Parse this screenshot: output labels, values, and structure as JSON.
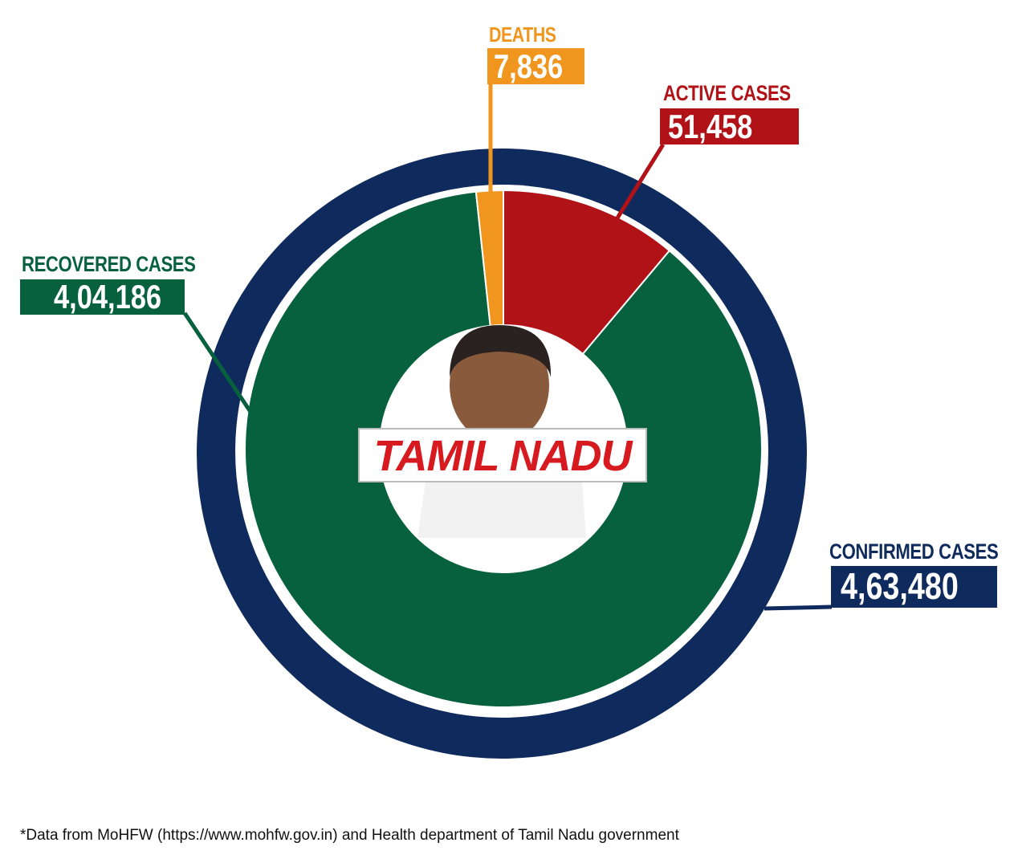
{
  "chart_data": {
    "type": "pie",
    "title": "TAMIL NADU",
    "outer_ring": {
      "label": "CONFIRMED CASES",
      "value": 463480,
      "display": "4,63,480",
      "color": "#0f2a5c"
    },
    "slices": [
      {
        "label": "ACTIVE CASES",
        "value": 51458,
        "display": "51,458",
        "color": "#b01217"
      },
      {
        "label": "RECOVERED CASES",
        "value": 404186,
        "display": "4,04,186",
        "color": "#07613f"
      },
      {
        "label": "DEATHS",
        "value": 7836,
        "display": "7,836",
        "color": "#f0961e"
      }
    ],
    "legend": "none",
    "footnote": "*Data from MoHFW (https://www.mohfw.gov.in) and Health department of Tamil Nadu government"
  }
}
